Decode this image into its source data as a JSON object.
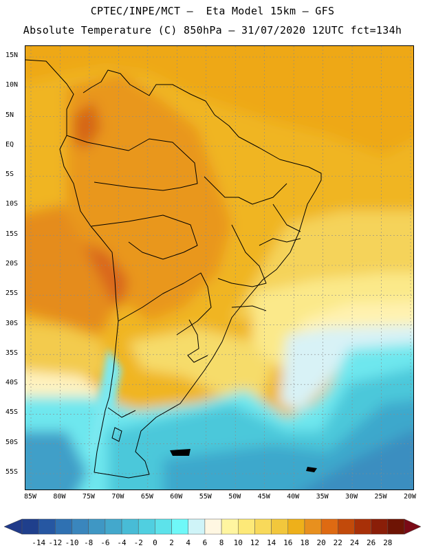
{
  "header": {
    "line1": "CPTEC/INPE/MCT –  Eta Model 15km – GFS",
    "line2": "Absolute Temperature (C) 850hPa – 31/07/2020 12UTC fct=134h"
  },
  "map": {
    "lat_labels": [
      "15N",
      "10N",
      "5N",
      "EQ",
      "5S",
      "10S",
      "15S",
      "20S",
      "25S",
      "30S",
      "35S",
      "40S",
      "45S",
      "50S",
      "55S"
    ],
    "lon_labels": [
      "85W",
      "80W",
      "75W",
      "70W",
      "65W",
      "60W",
      "55W",
      "50W",
      "45W",
      "40W",
      "35W",
      "30W",
      "25W",
      "20W"
    ],
    "gridlines": true
  },
  "colorbar": {
    "levels": [
      "-14",
      "-12",
      "-10",
      "-8",
      "-6",
      "-4",
      "-2",
      "0",
      "2",
      "4",
      "6",
      "8",
      "10",
      "12",
      "14",
      "16",
      "18",
      "20",
      "22",
      "24",
      "26",
      "28"
    ],
    "colors": [
      "#1f3f8c",
      "#2657a2",
      "#2f71b2",
      "#3a86bd",
      "#3f97c4",
      "#43a8cc",
      "#48bcd6",
      "#50cfe0",
      "#5de2ea",
      "#6ff8f8",
      "#cff4f8",
      "#fff7e2",
      "#fff5a0",
      "#fde978",
      "#f8d95a",
      "#f2c73c",
      "#eeb01a",
      "#e8901e",
      "#de6a12",
      "#c24a0a",
      "#a83008",
      "#8a1e08",
      "#6e1404"
    ],
    "left_arrow_color": "#203a8a",
    "right_arrow_color": "#7a0a16"
  }
}
